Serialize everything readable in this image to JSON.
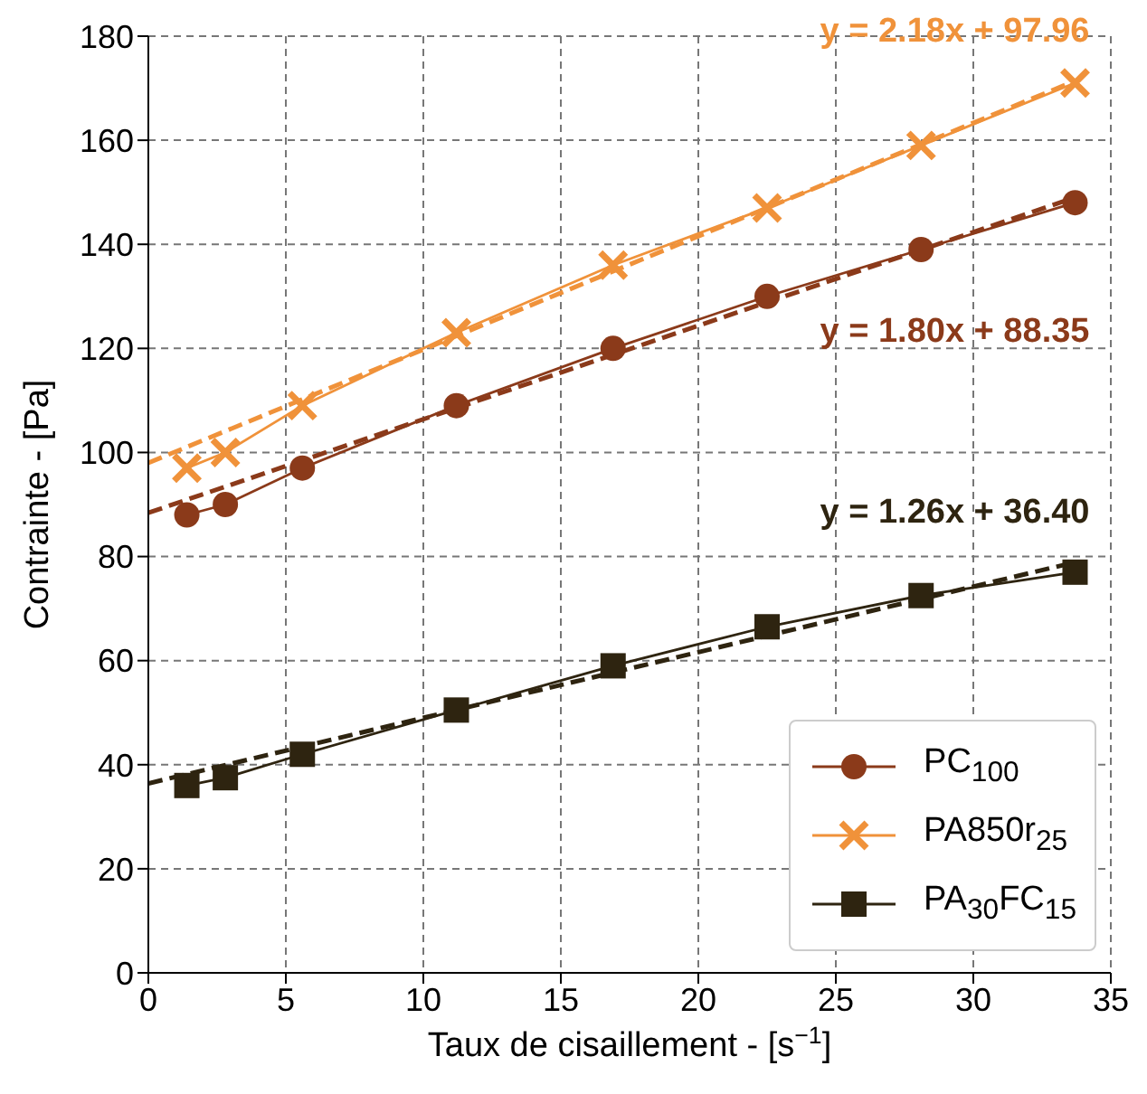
{
  "chart_data": {
    "type": "line",
    "xlabel": "Taux de cisaillement - [s$^{−1}$]",
    "ylabel": "Contrainte - [Pa]",
    "xlim": [
      0,
      35
    ],
    "xticks": [
      0,
      5,
      10,
      15,
      20,
      25,
      30,
      35
    ],
    "ylim": [
      0,
      180
    ],
    "yticks": [
      0,
      20,
      40,
      60,
      80,
      100,
      120,
      140,
      160,
      180
    ],
    "grid": true,
    "legend": "bottom right",
    "line_style": "solid",
    "series": [
      {
        "name": "PC$_{100}$",
        "color": "#8b3a1a",
        "marker": "circle",
        "x": [
          1.4,
          2.8,
          5.6,
          11.2,
          16.9,
          22.5,
          28.1,
          33.7
        ],
        "values": [
          88,
          90,
          97,
          109,
          120,
          130,
          139,
          148
        ]
      },
      {
        "name": "PA850r$_{25}$",
        "color": "#f0923a",
        "marker": "cross",
        "x": [
          1.4,
          2.8,
          5.6,
          11.2,
          16.9,
          22.5,
          28.1,
          33.7
        ],
        "values": [
          97,
          100,
          109,
          123,
          136,
          147,
          159,
          171
        ]
      },
      {
        "name": "PA$_{30}$FC$_{15}$",
        "color": "#2e2410",
        "marker": "square",
        "x": [
          1.4,
          2.8,
          5.6,
          11.2,
          16.9,
          22.5,
          28.1,
          33.7
        ],
        "values": [
          36,
          37.5,
          42,
          50.5,
          59,
          66.5,
          72.5,
          77
        ]
      },
      {
        "name": "y = 1.80x + 88.35",
        "color": "#8b3a1a",
        "marker": "none",
        "line_style": "dashed",
        "x": [
          0,
          33.7
        ],
        "values": [
          88.4,
          149
        ]
      },
      {
        "name": "y = 2.18x + 97.96",
        "color": "#f0923a",
        "marker": "none",
        "line_style": "dashed",
        "x": [
          0,
          33.7
        ],
        "values": [
          98,
          171.4
        ]
      },
      {
        "name": "y = 1.26x + 36.40",
        "color": "#2e2410",
        "marker": "none",
        "line_style": "dashed",
        "x": [
          0,
          33.7
        ],
        "values": [
          36.4,
          78.9
        ]
      }
    ]
  }
}
